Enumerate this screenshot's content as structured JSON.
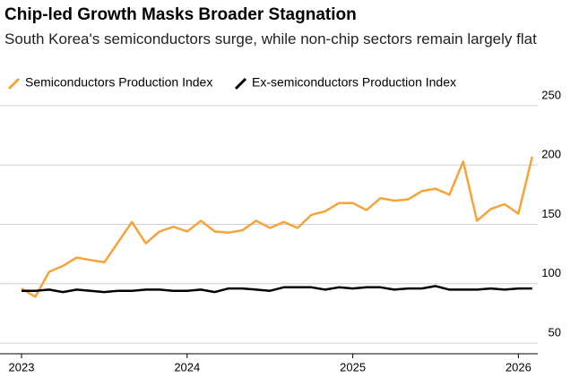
{
  "chart_data": {
    "type": "line",
    "title": "Chip-led Growth Masks Broader Stagnation",
    "subtitle": "South Korea's semiconductors surge, while non-chip sectors remain largely flat",
    "categories": [
      "2023",
      null,
      null,
      null,
      null,
      null,
      null,
      null,
      null,
      null,
      null,
      null,
      "2024",
      null,
      null,
      null,
      null,
      null,
      null,
      null,
      null,
      null,
      null,
      null,
      "2025",
      null,
      null,
      null,
      null,
      null,
      null,
      null,
      null,
      null,
      null,
      null,
      "2026",
      null
    ],
    "series": [
      {
        "name": "Semiconductors Production Index",
        "color": "#f5a33a",
        "values": [
          96,
          89,
          110,
          115,
          122,
          120,
          118,
          135,
          152,
          134,
          144,
          148,
          144,
          153,
          144,
          143,
          145,
          153,
          147,
          152,
          147,
          158,
          161,
          168,
          168,
          162,
          172,
          170,
          171,
          178,
          180,
          175,
          203,
          153,
          163,
          167,
          159,
          207
        ]
      },
      {
        "name": "Ex-semiconductors Production Index",
        "color": "#000000",
        "values": [
          94,
          94,
          95,
          93,
          95,
          94,
          93,
          94,
          94,
          95,
          95,
          94,
          94,
          95,
          93,
          96,
          96,
          95,
          94,
          97,
          97,
          97,
          95,
          97,
          96,
          97,
          97,
          95,
          96,
          96,
          98,
          95,
          95,
          95,
          96,
          95,
          96,
          96
        ]
      }
    ],
    "ylim": [
      41,
      256
    ],
    "yticks": [
      50,
      100,
      150,
      200,
      250
    ],
    "grid": true
  }
}
